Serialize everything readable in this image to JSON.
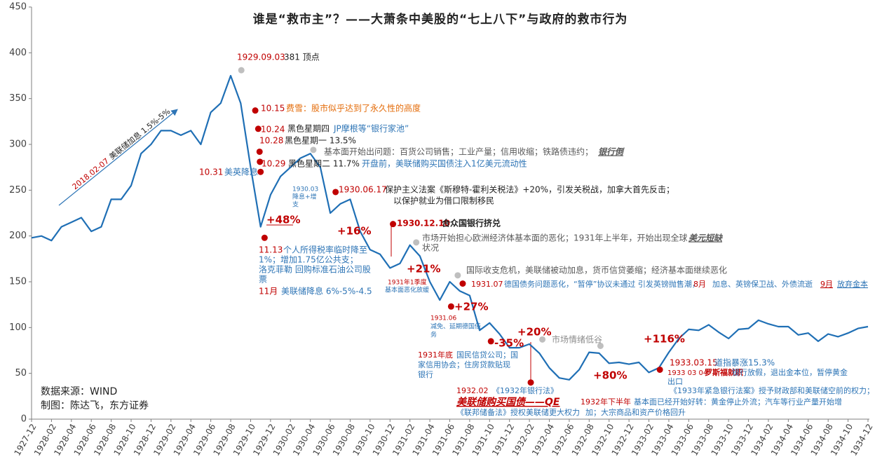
{
  "chart_data": {
    "type": "line",
    "title": "谁是“救市主”？——大萧条中美股的“七上八下”与政府的救市行为",
    "color": "#1f6fb5",
    "ylim": [
      0,
      450
    ],
    "yticks": [
      0,
      50,
      100,
      150,
      200,
      250,
      300,
      350,
      400,
      450
    ],
    "categories": [
      "1927-12",
      "1928-02",
      "1928-04",
      "1928-06",
      "1928-08",
      "1928-10",
      "1928-12",
      "1929-02",
      "1929-04",
      "1929-06",
      "1929-08",
      "1929-10",
      "1929-12",
      "1930-02",
      "1930-04",
      "1930-06",
      "1930-08",
      "1930-10",
      "1930-12",
      "1931-02",
      "1931-04",
      "1931-06",
      "1931-08",
      "1931-10",
      "1931-12",
      "1932-02",
      "1932-04",
      "1932-06",
      "1932-08",
      "1932-10",
      "1932-12",
      "1933-02",
      "1933-04",
      "1933-06",
      "1933-08",
      "1933-10",
      "1933-12",
      "1934-02",
      "1934-04",
      "1934-06",
      "1934-08",
      "1934-10",
      "1934-12"
    ],
    "x": [
      "1927-12",
      "1928-01",
      "1928-02",
      "1928-03",
      "1928-04",
      "1928-05",
      "1928-06",
      "1928-07",
      "1928-08",
      "1928-09",
      "1928-10",
      "1928-11",
      "1928-12",
      "1929-01",
      "1929-02",
      "1929-03",
      "1929-04",
      "1929-05",
      "1929-06",
      "1929-07",
      "1929-08",
      "1929-09",
      "1929-10",
      "1929-11",
      "1929-12",
      "1930-01",
      "1930-02",
      "1930-03",
      "1930-04",
      "1930-05",
      "1930-06",
      "1930-07",
      "1930-08",
      "1930-09",
      "1930-10",
      "1930-11",
      "1930-12",
      "1931-01",
      "1931-02",
      "1931-03",
      "1931-04",
      "1931-05",
      "1931-06",
      "1931-07",
      "1931-08",
      "1931-09",
      "1931-10",
      "1931-11",
      "1931-12",
      "1932-01",
      "1932-02",
      "1932-03",
      "1932-04",
      "1932-05",
      "1932-06",
      "1932-07",
      "1932-08",
      "1932-09",
      "1932-10",
      "1932-11",
      "1932-12",
      "1933-01",
      "1933-02",
      "1933-03",
      "1933-04",
      "1933-05",
      "1933-06",
      "1933-07",
      "1933-08",
      "1933-09",
      "1933-10",
      "1933-11",
      "1933-12",
      "1934-01",
      "1934-02",
      "1934-03",
      "1934-04",
      "1934-05",
      "1934-06",
      "1934-07",
      "1934-08",
      "1934-09",
      "1934-10",
      "1934-11",
      "1934-12"
    ],
    "values": [
      198,
      200,
      195,
      210,
      215,
      220,
      205,
      210,
      240,
      240,
      255,
      290,
      300,
      315,
      315,
      310,
      315,
      300,
      335,
      345,
      375,
      345,
      275,
      210,
      245,
      265,
      275,
      285,
      290,
      275,
      225,
      235,
      240,
      205,
      185,
      180,
      165,
      170,
      190,
      178,
      150,
      130,
      150,
      140,
      135,
      97,
      105,
      93,
      78,
      78,
      82,
      72,
      56,
      45,
      43,
      54,
      73,
      72,
      61,
      62,
      60,
      62,
      51,
      56,
      73,
      88,
      98,
      97,
      103,
      95,
      88,
      98,
      99,
      108,
      104,
      101,
      101,
      92,
      94,
      85,
      93,
      90,
      94,
      99,
      101
    ],
    "markers": [
      {
        "date": "1929-09-03",
        "value": 381,
        "color": "#bfbfbf"
      },
      {
        "date": "1929-10-15",
        "value": 337,
        "color": "#c00000"
      },
      {
        "date": "1929-10-24",
        "value": 317,
        "color": "#c00000"
      },
      {
        "date": "1929-10-28",
        "value": 292,
        "color": "#c00000"
      },
      {
        "date": "1929-10-29",
        "value": 281,
        "color": "#c00000"
      },
      {
        "date": "1929-10-31",
        "value": 270,
        "color": "#c00000"
      },
      {
        "date": "1929-11-13",
        "value": 198,
        "color": "#c00000"
      },
      {
        "date": "1930-04-10",
        "value": 294,
        "color": "#bfbfbf"
      },
      {
        "date": "1930-06-17",
        "value": 248,
        "color": "#c00000"
      },
      {
        "date": "1930-12-10",
        "value": 213,
        "color": "#c00000"
      },
      {
        "date": "1931-02-20",
        "value": 193,
        "color": "#bfbfbf"
      },
      {
        "date": "1931-06-25",
        "value": 157,
        "color": "#bfbfbf"
      },
      {
        "date": "1931-07-10",
        "value": 148,
        "color": "#c00000"
      },
      {
        "date": "1931-06-05",
        "value": 123,
        "color": "#c00000"
      },
      {
        "date": "1931-10-05",
        "value": 85,
        "color": "#c00000"
      },
      {
        "date": "1932-02-05",
        "value": 40,
        "color": "#c00000"
      },
      {
        "date": "1932-03-10",
        "value": 87,
        "color": "#bfbfbf"
      },
      {
        "date": "1932-09-05",
        "value": 80,
        "color": "#bfbfbf"
      },
      {
        "date": "1933-03-04",
        "value": 54,
        "color": "#c00000"
      }
    ],
    "annotations": [
      "1929.09.03",
      "381 顶点",
      "10.15",
      "费雪：股市似乎达到了永久性的高度",
      "10.24",
      "黑色星期四",
      "JP摩根等“银行家池”",
      "10.28",
      "黑色星期一 13.5%",
      "10.29",
      "黑色星期二 11.7%",
      "开盘前，美联储购买国债注入1亿美元流动性",
      "10.31",
      "美英降息",
      "基本面开始出问题：百货公司销售；工业产量；信用收缩；铁路债违约；",
      "银行倒",
      "1930.03",
      "降息+增",
      "支",
      "1930.06.17",
      "保护主义法案《斯穆特-霍利关税法》+20%，引发关税战，加拿大首先反击；",
      "以保护就业为借口限制移民",
      "+48%",
      "+16%",
      "1930.12.10",
      "合众国银行挤兑",
      "11.13",
      "个人所得税率临时降至",
      "1%；增加1.75亿公共支；",
      "洛克菲勒 回购标准石油公司股",
      "票",
      "11月",
      "美联储降息 6%-5%-4.5",
      "市场开始担心欧洲经济体基本面的恶化；1931年上半年，开始出现全球",
      "美元短缺",
      "状况",
      "+21%",
      "1931年1季度",
      "基本面恶化放缓",
      "国际收支危机，美联储被动加息，货币信贷萎缩；经济基本面继续恶化",
      "1931.07",
      "德国债务问题恶化，“暂停”协议未通过 引发英镑抛售潮，",
      "8月",
      "加息、英镑保卫战、外债流逝",
      "9月",
      "放弃金本",
      "+27%",
      "1931.06",
      "减免、延期德国债",
      "务",
      "-35%",
      "+20%",
      "市场情绪低谷",
      "1931年底",
      "国民信贷公司；国",
      "家信用协会；住房贷款贴现",
      "银行",
      "+80%",
      "+116%",
      "1933.03.15",
      "道指暴涨15.3%",
      "1933 03 04",
      "罗斯福就职",
      "银行放假，退出金本位，暂停黄金",
      "出口",
      "《1933年紧急银行法案》授予财政部和美联储空前的权力；",
      "1932.02",
      "《1932年银行法》",
      "美联储购买国债——QE",
      "1932年下半年",
      "基本面已经开始好转：黄金停止外流；汽车等行业产量开始增",
      "《联邦储备法》授权美联储更大权力",
      "加；大宗商品和资产价格回升"
    ],
    "arrow_date": "2018.02-07",
    "arrow_text": "美联储加息 1.5%-5%",
    "source": "数据来源：WIND",
    "credit": "制图：陈达飞，东方证券"
  }
}
